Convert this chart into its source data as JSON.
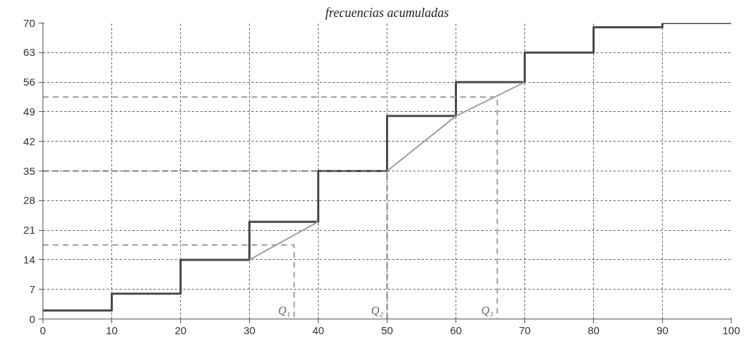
{
  "chart_data": {
    "type": "step",
    "title": "frecuencias acumuladas",
    "x": [
      0,
      10,
      20,
      30,
      40,
      50,
      60,
      70,
      80,
      90,
      100
    ],
    "series": [
      {
        "color": "#4a4a4a",
        "values": [
          2,
          6,
          14,
          23,
          35,
          48,
          56,
          63,
          69,
          70,
          70
        ]
      },
      {
        "type": "line",
        "color": "#a0a0a0",
        "x": [
          30,
          40,
          45,
          50,
          60,
          70
        ],
        "values": [
          14,
          23,
          null,
          35,
          48,
          56
        ]
      },
      {
        "type": "line",
        "color": "#a0a0a0",
        "line_style": "dashed",
        "x": [
          0,
          36.5,
          36.5
        ],
        "values": [
          17.5,
          17.5,
          0
        ]
      },
      {
        "type": "line",
        "color": "#808080",
        "line_style": "dashed",
        "x": [
          0,
          50,
          50
        ],
        "values": [
          35,
          35,
          0
        ]
      },
      {
        "type": "line",
        "color": "#a0a0a0",
        "line_style": "dashed",
        "x": [
          0,
          66,
          66
        ],
        "values": [
          52.5,
          52.5,
          0
        ]
      }
    ],
    "annotations": [
      {
        "text": "Q₁",
        "x": 36.5,
        "y": 0
      },
      {
        "text": "Q₂",
        "x": 50,
        "y": 0
      },
      {
        "text": "Q₃",
        "x": 66,
        "y": 0
      }
    ],
    "xlim": [
      0,
      100
    ],
    "xticks": [
      0,
      10,
      20,
      30,
      40,
      50,
      60,
      70,
      80,
      90,
      100
    ],
    "ylim": [
      0,
      70
    ],
    "yticks": [
      0,
      7,
      14,
      21,
      28,
      35,
      42,
      49,
      56,
      63,
      70
    ],
    "grid": true
  }
}
